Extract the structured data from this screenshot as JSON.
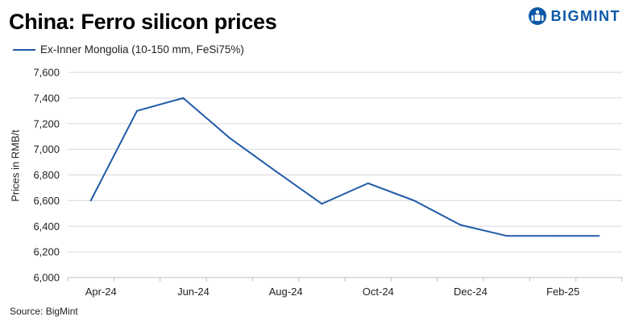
{
  "title": "China: Ferro silicon prices",
  "logo": {
    "text": "BIGMINT",
    "icon": "bigmint-logo-icon",
    "color": "#0c58a6"
  },
  "source": "Source:  BigMint",
  "chart_data": {
    "type": "line",
    "title": "China: Ferro silicon prices",
    "xlabel": "",
    "ylabel": "Prices in RMB/t",
    "ylim": [
      6000,
      7600
    ],
    "yticks": [
      6000,
      6200,
      6400,
      6600,
      6800,
      7000,
      7200,
      7400,
      7600
    ],
    "ytick_labels": [
      "6,000",
      "6,200",
      "6,400",
      "6,600",
      "6,800",
      "7,000",
      "7,200",
      "7,400",
      "7,600"
    ],
    "x": [
      "Apr-24",
      "May-24",
      "Jun-24",
      "Jul-24",
      "Aug-24",
      "Sep-24",
      "Oct-24",
      "Nov-24",
      "Dec-24",
      "Jan-25",
      "Feb-25",
      "Mar-25"
    ],
    "xtick_labels": [
      "Apr-24",
      "Jun-24",
      "Aug-24",
      "Oct-24",
      "Dec-24",
      "Feb-25"
    ],
    "grid": true,
    "legend_position": "top-left",
    "series": [
      {
        "name": "Ex-Inner Mongolia (10-150 mm, FeSi75%)",
        "color": "#1f5aa6",
        "values": [
          6600,
          7300,
          7400,
          7090,
          6830,
          6575,
          6735,
          6600,
          6410,
          6325,
          6325,
          6325
        ]
      }
    ]
  }
}
